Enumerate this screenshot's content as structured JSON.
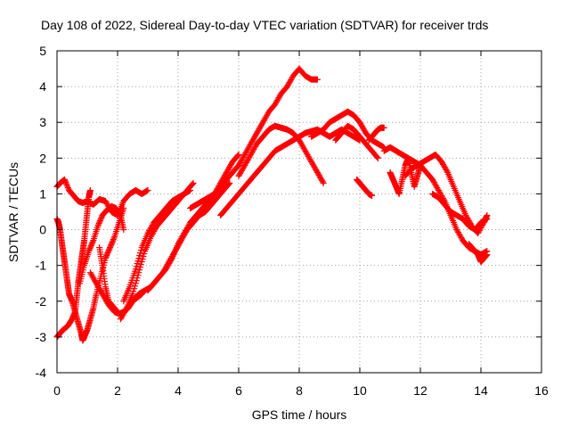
{
  "chart_data": {
    "type": "scatter",
    "title": "Day 108 of 2022, Sidereal Day-to-day VTEC variation (SDTVAR) for receiver trds",
    "xlabel": "GPS time / hours",
    "ylabel": "SDTVAR / TECUs",
    "xlim": [
      0,
      16
    ],
    "ylim": [
      -4,
      5
    ],
    "xticks": [
      0,
      2,
      4,
      6,
      8,
      10,
      12,
      14,
      16
    ],
    "yticks": [
      -4,
      -3,
      -2,
      -1,
      0,
      1,
      2,
      3,
      4,
      5
    ],
    "grid": true,
    "marker": "+",
    "color": "#ff0000",
    "series": [
      {
        "x": [
          0.0,
          0.1,
          0.25,
          0.4,
          0.55,
          0.7,
          0.85,
          1.0,
          1.2,
          1.4,
          1.6,
          1.8,
          2.0,
          2.2,
          2.4,
          2.6,
          2.8,
          3.0
        ],
        "y": [
          1.2,
          1.3,
          1.4,
          1.1,
          0.95,
          0.8,
          0.75,
          0.8,
          0.7,
          0.85,
          0.8,
          0.5,
          0.4,
          0.8,
          1.0,
          1.1,
          1.0,
          1.1
        ]
      },
      {
        "x": [
          0.0,
          0.05,
          0.1,
          0.15,
          0.2,
          0.25,
          0.3,
          0.35,
          0.4,
          0.5,
          0.6,
          0.7,
          0.8,
          0.85,
          0.9,
          1.0,
          1.1,
          1.2,
          1.3,
          1.45,
          1.6,
          1.75,
          1.9,
          2.05,
          2.2
        ],
        "y": [
          0.3,
          0.2,
          0.0,
          -0.3,
          -0.6,
          -0.9,
          -1.2,
          -1.5,
          -1.8,
          -2.0,
          -2.3,
          -2.6,
          -2.9,
          -3.1,
          -3.0,
          -2.8,
          -2.5,
          -2.2,
          -1.8,
          -1.3,
          -0.8,
          -0.5,
          -0.2,
          0.2,
          0.6
        ]
      },
      {
        "x": [
          0.0,
          0.1,
          0.2,
          0.35,
          0.5,
          0.6,
          0.65,
          0.7,
          0.75,
          0.8,
          0.85,
          0.9,
          0.95,
          1.0,
          1.05,
          1.1
        ],
        "y": [
          -3.0,
          -2.9,
          -2.8,
          -2.7,
          -2.5,
          -2.3,
          -1.9,
          -1.5,
          -1.2,
          -0.9,
          -0.6,
          -0.3,
          0.1,
          0.5,
          0.9,
          1.1
        ]
      },
      {
        "x": [
          0.75,
          0.9,
          1.05,
          1.2,
          1.35,
          1.5,
          1.65,
          1.8,
          1.95,
          2.1,
          2.2
        ],
        "y": [
          -1.5,
          -1.0,
          -0.6,
          -0.3,
          0.1,
          0.4,
          0.55,
          0.65,
          0.6,
          0.4,
          0.0
        ]
      },
      {
        "x": [
          1.1,
          1.3,
          1.5,
          1.7,
          1.9,
          2.05,
          2.2,
          2.35,
          2.5,
          2.65,
          2.8
        ],
        "y": [
          -1.2,
          -1.5,
          -1.8,
          -2.1,
          -2.3,
          -2.35,
          -2.3,
          -2.2,
          -2.0,
          -1.9,
          -1.8
        ]
      },
      {
        "x": [
          1.4,
          1.5,
          1.6,
          1.7,
          1.8,
          1.9,
          2.0
        ],
        "y": [
          -0.5,
          -1.0,
          -1.6,
          -2.0,
          -2.1,
          -2.2,
          -2.3
        ]
      },
      {
        "x": [
          2.1,
          2.3,
          2.5,
          2.7,
          2.9,
          3.1,
          3.3,
          3.5,
          3.7,
          3.9,
          4.1,
          4.3,
          4.5
        ],
        "y": [
          -2.5,
          -2.2,
          -1.8,
          -1.2,
          -0.6,
          -0.2,
          0.1,
          0.3,
          0.5,
          0.7,
          0.9,
          1.1,
          1.3
        ]
      },
      {
        "x": [
          2.2,
          2.4,
          2.6,
          2.8,
          3.0,
          3.2,
          3.4,
          3.6,
          3.8,
          4.0,
          4.2,
          4.4
        ],
        "y": [
          -2.0,
          -1.6,
          -1.1,
          -0.5,
          -0.1,
          0.2,
          0.4,
          0.6,
          0.8,
          0.9,
          1.0,
          1.1
        ]
      },
      {
        "x": [
          2.3,
          2.5,
          2.7,
          2.9,
          3.1,
          3.3,
          3.5,
          3.7,
          3.9,
          4.1,
          4.3,
          4.5,
          4.7,
          4.9,
          5.1,
          5.3,
          5.5,
          5.7
        ],
        "y": [
          -2.2,
          -2.0,
          -1.8,
          -1.7,
          -1.6,
          -1.4,
          -1.2,
          -0.9,
          -0.6,
          -0.3,
          0.0,
          0.2,
          0.4,
          0.5,
          0.7,
          0.9,
          1.1,
          1.3
        ]
      },
      {
        "x": [
          3.0,
          3.2,
          3.4,
          3.6,
          3.8,
          4.0,
          4.2,
          4.4,
          4.6,
          4.8,
          5.0,
          5.2,
          5.4,
          5.6,
          5.8,
          6.0
        ],
        "y": [
          -1.7,
          -1.5,
          -1.3,
          -1.1,
          -0.8,
          -0.4,
          -0.1,
          0.2,
          0.4,
          0.6,
          0.8,
          1.0,
          1.3,
          1.6,
          1.9,
          2.1
        ]
      },
      {
        "x": [
          4.4,
          4.6,
          4.8,
          5.0,
          5.2,
          5.4,
          5.6,
          5.8,
          6.0,
          6.2,
          6.4,
          6.6,
          6.8,
          7.0,
          7.2,
          7.4,
          7.6,
          7.8,
          8.0,
          8.2,
          8.4,
          8.6
        ],
        "y": [
          0.6,
          0.7,
          0.8,
          0.9,
          1.0,
          1.2,
          1.4,
          1.6,
          1.8,
          2.1,
          2.4,
          2.7,
          3.0,
          3.3,
          3.5,
          3.8,
          4.0,
          4.3,
          4.5,
          4.3,
          4.2,
          4.2
        ]
      },
      {
        "x": [
          6.0,
          6.2,
          6.4,
          6.6,
          6.8,
          7.0,
          7.2,
          7.4,
          7.6,
          7.8,
          8.0,
          8.2,
          8.4,
          8.6,
          8.8
        ],
        "y": [
          1.5,
          1.8,
          2.1,
          2.4,
          2.6,
          2.8,
          2.9,
          2.85,
          2.8,
          2.7,
          2.5,
          2.2,
          1.9,
          1.6,
          1.3
        ]
      },
      {
        "x": [
          5.4,
          5.6,
          5.8,
          6.0,
          6.2,
          6.4,
          6.6,
          6.8,
          7.0,
          7.2,
          7.4,
          7.6,
          7.8,
          8.0,
          8.2,
          8.4,
          8.6,
          8.8,
          9.0,
          9.2,
          9.4,
          9.6,
          9.8,
          10.0
        ],
        "y": [
          0.4,
          0.6,
          0.8,
          1.0,
          1.2,
          1.4,
          1.6,
          1.8,
          2.0,
          2.2,
          2.3,
          2.4,
          2.5,
          2.6,
          2.7,
          2.75,
          2.8,
          2.7,
          2.6,
          2.7,
          2.8,
          2.7,
          2.6,
          2.5
        ]
      },
      {
        "x": [
          8.4,
          8.6,
          8.8,
          9.0,
          9.2,
          9.4,
          9.6,
          9.8,
          10.0,
          10.2,
          10.4,
          10.6,
          10.8
        ],
        "y": [
          2.6,
          2.7,
          2.8,
          3.0,
          3.1,
          3.2,
          3.3,
          3.2,
          3.0,
          2.7,
          2.5,
          2.4,
          2.3
        ]
      },
      {
        "x": [
          9.2,
          9.4,
          9.6,
          9.8,
          10.0,
          10.2,
          10.4,
          10.6
        ],
        "y": [
          2.5,
          2.7,
          2.9,
          2.8,
          2.6,
          2.4,
          2.2,
          2.0
        ]
      },
      {
        "x": [
          9.9,
          10.0,
          10.1,
          10.2,
          10.3,
          10.4
        ],
        "y": [
          1.4,
          1.3,
          1.2,
          1.1,
          1.0,
          0.95
        ]
      },
      {
        "x": [
          10.3,
          10.4,
          10.5,
          10.6,
          10.7,
          10.8
        ],
        "y": [
          2.5,
          2.6,
          2.7,
          2.8,
          2.85,
          2.85
        ]
      },
      {
        "x": [
          10.8,
          11.0,
          11.2,
          11.4,
          11.6,
          11.8,
          12.0,
          12.2,
          12.4,
          12.6,
          12.8,
          13.0,
          13.2,
          13.4,
          13.6,
          13.8,
          14.0,
          14.2
        ],
        "y": [
          2.2,
          2.3,
          2.2,
          2.1,
          2.0,
          1.9,
          1.8,
          1.6,
          1.4,
          1.1,
          0.8,
          0.4,
          0.0,
          -0.3,
          -0.5,
          -0.6,
          -0.7,
          -0.6
        ]
      },
      {
        "x": [
          11.0,
          11.1,
          11.2,
          11.3,
          11.4,
          11.5,
          11.6,
          11.7,
          11.8,
          11.9,
          12.0
        ],
        "y": [
          1.6,
          1.4,
          1.2,
          1.0,
          1.4,
          1.8,
          2.0,
          1.6,
          1.2,
          1.5,
          1.8
        ]
      },
      {
        "x": [
          11.5,
          11.7,
          11.9,
          12.1,
          12.3,
          12.5,
          12.7,
          12.9,
          13.1,
          13.3,
          13.5,
          13.7,
          13.9,
          14.1,
          14.2
        ],
        "y": [
          1.5,
          1.7,
          1.8,
          1.9,
          2.0,
          2.1,
          1.9,
          1.6,
          1.2,
          0.8,
          0.4,
          0.1,
          -0.1,
          0.2,
          0.4
        ]
      },
      {
        "x": [
          12.4,
          12.6,
          12.8,
          13.0,
          13.2,
          13.4,
          13.6,
          13.8,
          14.0,
          14.2
        ],
        "y": [
          1.0,
          0.9,
          0.7,
          0.5,
          0.4,
          0.3,
          0.1,
          0.0,
          0.2,
          0.3
        ]
      },
      {
        "x": [
          13.6,
          13.7,
          13.8,
          13.9,
          14.0,
          14.1,
          14.2
        ],
        "y": [
          -0.4,
          -0.5,
          -0.6,
          -0.7,
          -0.9,
          -0.8,
          -0.7
        ]
      }
    ]
  }
}
